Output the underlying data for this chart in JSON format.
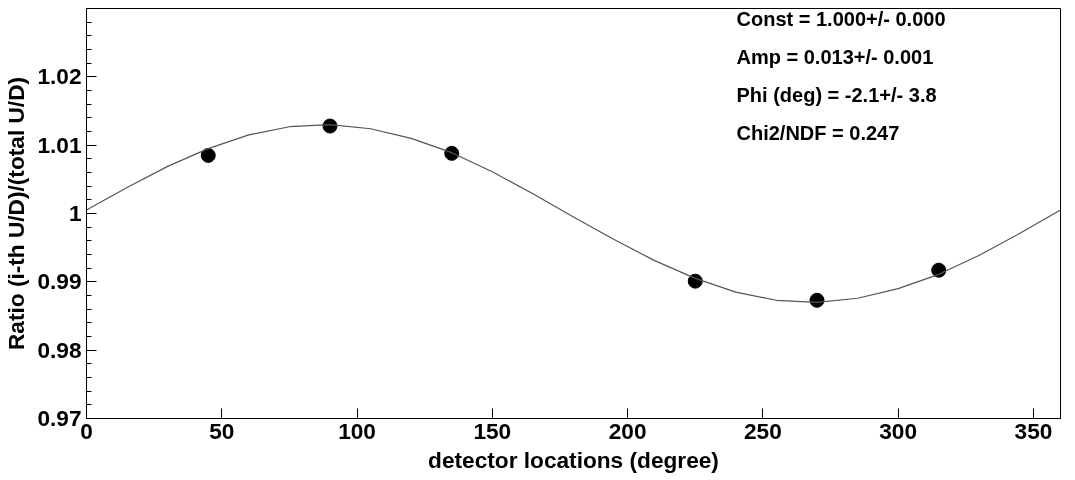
{
  "chart_data": {
    "type": "scatter",
    "xlabel": "detector locations (degree)",
    "ylabel": "Ratio (i-th U/D)/(total U/D)",
    "xlim": [
      0,
      360
    ],
    "ylim": [
      0.97,
      1.03
    ],
    "xticks": [
      0,
      50,
      100,
      150,
      200,
      250,
      300,
      350
    ],
    "yticks": [
      0.97,
      0.98,
      0.99,
      {
        "value": 1,
        "label": "1"
      },
      1.01,
      1.02
    ],
    "grid": false,
    "marker": "circle",
    "annotations": [
      "Const =   1.000+/-  0.000",
      "Amp =   0.013+/-  0.001",
      "Phi (deg) =  -2.1+/-  3.8",
      "Chi2/NDF =  0.247"
    ],
    "series": [
      {
        "color": "#000000",
        "x": [
          45,
          90,
          135,
          225,
          270,
          315
        ],
        "values": [
          1.0085,
          1.0128,
          1.0088,
          0.9901,
          0.9873,
          0.9917
        ],
        "errors": [
          0.0003,
          0.0003,
          0.0003,
          0.0003,
          0.0003,
          0.0003
        ]
      },
      {
        "type": "line",
        "color": "#555555",
        "marker": "none",
        "x": [
          0,
          15,
          30,
          45,
          60,
          75,
          90,
          105,
          120,
          135,
          150,
          165,
          180,
          195,
          210,
          225,
          240,
          255,
          270,
          285,
          300,
          315,
          330,
          345,
          360
        ],
        "values": [
          1.0005,
          1.0038,
          1.0069,
          1.0095,
          1.0115,
          1.0127,
          1.013,
          1.0124,
          1.011,
          1.0089,
          1.0061,
          1.0029,
          0.9995,
          0.9962,
          0.9931,
          0.9905,
          0.9885,
          0.9873,
          0.987,
          0.9876,
          0.989,
          0.9911,
          0.9939,
          0.9971,
          1.0005
        ]
      }
    ]
  }
}
